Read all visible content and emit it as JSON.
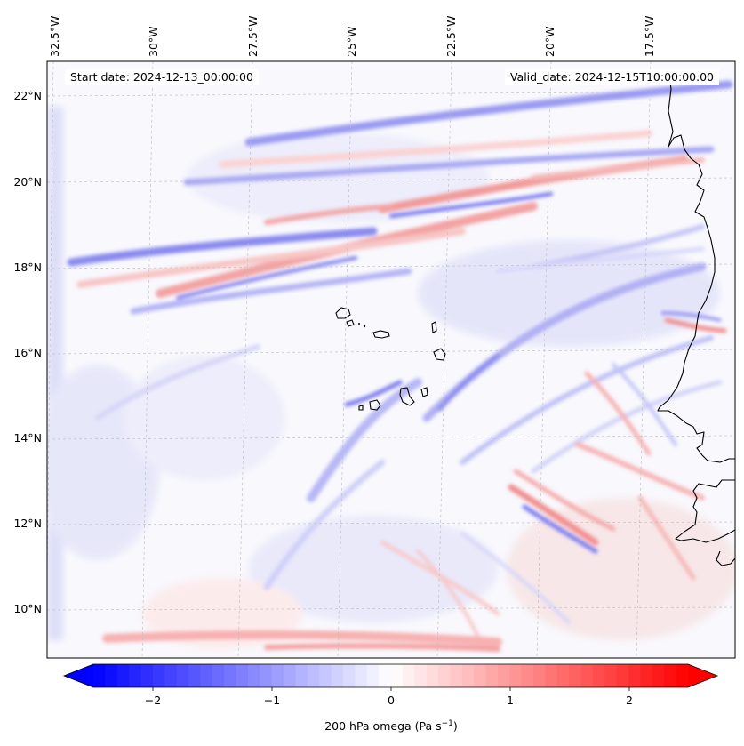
{
  "header": {
    "start_date": "Start date: 2024-12-13_00:00:00",
    "valid_date": "Valid_date: 2024-12-15T10:00:00.00"
  },
  "map": {
    "lon_labels": [
      "32.5°W",
      "30°W",
      "27.5°W",
      "25°W",
      "22.5°W",
      "20°W",
      "17.5°W"
    ],
    "lat_labels": [
      "22°N",
      "20°N",
      "18°N",
      "16°N",
      "14°N",
      "12°N",
      "10°N"
    ]
  },
  "colorbar": {
    "label": "200 hPa omega (Pa s",
    "label_exp": "−1",
    "label_close": ")",
    "ticks": [
      "−2",
      "−1",
      "0",
      "1",
      "2"
    ],
    "min": -2.6,
    "max": 2.6,
    "colors": {
      "negative": "#0000ff",
      "zero": "#ffffff",
      "positive": "#ff0000"
    }
  }
}
